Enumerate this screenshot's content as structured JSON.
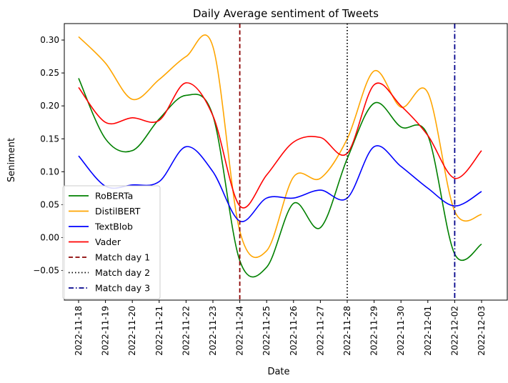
{
  "chart_data": {
    "type": "line",
    "title": "Daily Average sentiment of Tweets",
    "xlabel": "Date",
    "ylabel": "Seniment",
    "x": [
      "2022-11-18",
      "2022-11-19",
      "2022-11-20",
      "2022-11-21",
      "2022-11-22",
      "2022-11-23",
      "2022-11-24",
      "2022-11-25",
      "2022-11-26",
      "2022-11-27",
      "2022-11-28",
      "2022-11-29",
      "2022-11-30",
      "2022-12-01",
      "2022-12-02",
      "2022-12-03"
    ],
    "yticks": [
      "0.30",
      "0.25",
      "0.20",
      "0.15",
      "0.10",
      "0.05",
      "0.00",
      "−0.05"
    ],
    "ylim": [
      -0.095,
      0.325
    ],
    "grid": false,
    "legend_position": "lower-left",
    "series": [
      {
        "name": "RoBERTa",
        "color": "#008000",
        "points": [
          [
            "2022-11-18",
            0.242
          ],
          [
            "2022-11-19",
            0.15
          ],
          [
            "2022-11-20",
            0.132
          ],
          [
            "2022-11-21",
            0.18
          ],
          [
            "2022-11-22",
            0.216
          ],
          [
            "2022-11-23",
            0.185
          ],
          [
            "2022-11-24",
            -0.035
          ],
          [
            "2022-11-25",
            -0.045
          ],
          [
            "2022-11-26",
            0.052
          ],
          [
            "2022-11-27",
            0.015
          ],
          [
            "2022-11-28",
            0.12
          ],
          [
            "2022-11-29",
            0.204
          ],
          [
            "2022-11-30",
            0.168
          ],
          [
            "2022-12-01",
            0.155
          ],
          [
            "2022-12-02",
            -0.025
          ],
          [
            "2022-12-03",
            -0.01
          ]
        ]
      },
      {
        "name": "DistilBERT",
        "color": "#ffa500",
        "points": [
          [
            "2022-11-18",
            0.305
          ],
          [
            "2022-11-19",
            0.265
          ],
          [
            "2022-11-20",
            0.21
          ],
          [
            "2022-11-21",
            0.24
          ],
          [
            "2022-11-22",
            0.275
          ],
          [
            "2022-11-23",
            0.29
          ],
          [
            "2022-11-24",
            0.01
          ],
          [
            "2022-11-25",
            -0.02
          ],
          [
            "2022-11-26",
            0.092
          ],
          [
            "2022-11-27",
            0.09
          ],
          [
            "2022-11-28",
            0.15
          ],
          [
            "2022-11-29",
            0.253
          ],
          [
            "2022-11-30",
            0.198
          ],
          [
            "2022-12-01",
            0.22
          ],
          [
            "2022-12-02",
            0.04
          ],
          [
            "2022-12-03",
            0.035
          ]
        ]
      },
      {
        "name": "TextBlob",
        "color": "#0000ff",
        "points": [
          [
            "2022-11-18",
            0.124
          ],
          [
            "2022-11-19",
            0.078
          ],
          [
            "2022-11-20",
            0.08
          ],
          [
            "2022-11-21",
            0.085
          ],
          [
            "2022-11-22",
            0.138
          ],
          [
            "2022-11-23",
            0.1
          ],
          [
            "2022-11-24",
            0.025
          ],
          [
            "2022-11-25",
            0.06
          ],
          [
            "2022-11-26",
            0.06
          ],
          [
            "2022-11-27",
            0.072
          ],
          [
            "2022-11-28",
            0.06
          ],
          [
            "2022-11-29",
            0.138
          ],
          [
            "2022-11-30",
            0.108
          ],
          [
            "2022-12-01",
            0.075
          ],
          [
            "2022-12-02",
            0.048
          ],
          [
            "2022-12-03",
            0.07
          ]
        ]
      },
      {
        "name": "Vader",
        "color": "#ff0000",
        "points": [
          [
            "2022-11-18",
            0.228
          ],
          [
            "2022-11-19",
            0.175
          ],
          [
            "2022-11-20",
            0.182
          ],
          [
            "2022-11-21",
            0.178
          ],
          [
            "2022-11-22",
            0.235
          ],
          [
            "2022-11-23",
            0.185
          ],
          [
            "2022-11-24",
            0.048
          ],
          [
            "2022-11-25",
            0.095
          ],
          [
            "2022-11-26",
            0.145
          ],
          [
            "2022-11-27",
            0.152
          ],
          [
            "2022-11-28",
            0.128
          ],
          [
            "2022-11-29",
            0.232
          ],
          [
            "2022-11-30",
            0.2
          ],
          [
            "2022-12-01",
            0.155
          ],
          [
            "2022-12-02",
            0.09
          ],
          [
            "2022-12-03",
            0.132
          ]
        ]
      }
    ],
    "vlines": [
      {
        "name": "Match day 1",
        "date": "2022-11-24",
        "color": "#8b0000",
        "style": "dashed"
      },
      {
        "name": "Match day 2",
        "date": "2022-11-28",
        "color": "#000000",
        "style": "dotted"
      },
      {
        "name": "Match day 3",
        "date": "2022-12-02",
        "color": "#00008b",
        "style": "dashdot"
      }
    ]
  }
}
